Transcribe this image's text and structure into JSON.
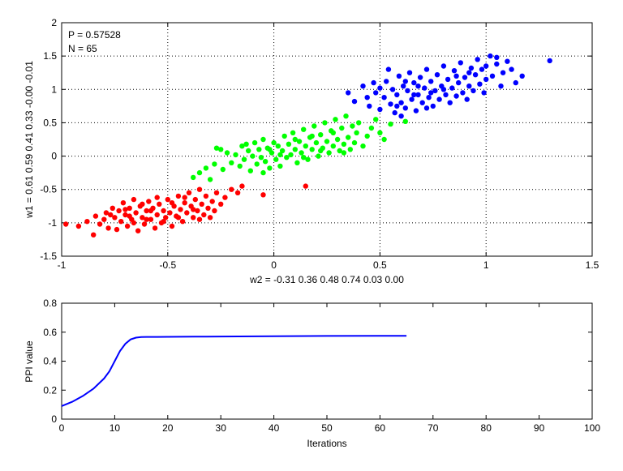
{
  "chart_data": [
    {
      "type": "scatter",
      "xlabel": "w2 = -0.31  0.36  0.48  0.74  0.03  0.00",
      "ylabel": "w1 = 0.61  0.59  0.41  0.33  -0.00  -0.01",
      "xlim": [
        -1,
        1.5
      ],
      "ylim": [
        -1.5,
        2
      ],
      "xticks": [
        "-1",
        "-0.5",
        "0",
        "0.5",
        "1",
        "1.5"
      ],
      "yticks": [
        "-1.5",
        "-1",
        "-0.5",
        "0",
        "0.5",
        "1",
        "1.5",
        "2"
      ],
      "grid": true,
      "annotations": [
        "P = 0.57528",
        "N = 65"
      ],
      "series": [
        {
          "color": "#ff0000",
          "points": [
            [
              -0.98,
              -1.02
            ],
            [
              -0.92,
              -1.05
            ],
            [
              -0.88,
              -0.98
            ],
            [
              -0.85,
              -1.18
            ],
            [
              -0.84,
              -0.9
            ],
            [
              -0.82,
              -1.02
            ],
            [
              -0.8,
              -0.95
            ],
            [
              -0.79,
              -0.85
            ],
            [
              -0.78,
              -1.08
            ],
            [
              -0.76,
              -0.78
            ],
            [
              -0.75,
              -0.92
            ],
            [
              -0.74,
              -1.1
            ],
            [
              -0.73,
              -0.82
            ],
            [
              -0.72,
              -0.98
            ],
            [
              -0.71,
              -0.7
            ],
            [
              -0.7,
              -0.88
            ],
            [
              -0.69,
              -1.05
            ],
            [
              -0.68,
              -0.78
            ],
            [
              -0.67,
              -0.95
            ],
            [
              -0.66,
              -0.65
            ],
            [
              -0.65,
              -0.85
            ],
            [
              -0.64,
              -1.12
            ],
            [
              -0.63,
              -0.75
            ],
            [
              -0.62,
              -0.92
            ],
            [
              -0.61,
              -1.02
            ],
            [
              -0.6,
              -0.82
            ],
            [
              -0.59,
              -0.68
            ],
            [
              -0.58,
              -0.95
            ],
            [
              -0.57,
              -0.78
            ],
            [
              -0.56,
              -1.08
            ],
            [
              -0.55,
              -0.88
            ],
            [
              -0.54,
              -0.72
            ],
            [
              -0.53,
              -1.0
            ],
            [
              -0.52,
              -0.82
            ],
            [
              -0.51,
              -0.92
            ],
            [
              -0.5,
              -0.65
            ],
            [
              -0.49,
              -0.85
            ],
            [
              -0.48,
              -1.05
            ],
            [
              -0.47,
              -0.75
            ],
            [
              -0.46,
              -0.9
            ],
            [
              -0.45,
              -0.6
            ],
            [
              -0.44,
              -0.8
            ],
            [
              -0.43,
              -0.98
            ],
            [
              -0.42,
              -0.7
            ],
            [
              -0.41,
              -0.85
            ],
            [
              -0.4,
              -0.55
            ],
            [
              -0.39,
              -0.75
            ],
            [
              -0.38,
              -0.92
            ],
            [
              -0.37,
              -0.65
            ],
            [
              -0.36,
              -0.82
            ],
            [
              -0.35,
              -0.5
            ],
            [
              -0.34,
              -0.72
            ],
            [
              -0.33,
              -0.88
            ],
            [
              -0.32,
              -0.6
            ],
            [
              -0.31,
              -0.78
            ],
            [
              -0.3,
              -0.92
            ],
            [
              -0.29,
              -0.68
            ],
            [
              -0.28,
              -0.82
            ],
            [
              -0.27,
              -0.55
            ],
            [
              -0.25,
              -0.72
            ],
            [
              -0.23,
              -0.62
            ],
            [
              -0.2,
              -0.5
            ],
            [
              -0.17,
              -0.55
            ],
            [
              -0.15,
              -0.45
            ],
            [
              -0.05,
              -0.58
            ],
            [
              0.15,
              -0.45
            ],
            [
              -0.62,
              -0.72
            ],
            [
              -0.58,
              -0.82
            ],
            [
              -0.55,
              -0.62
            ],
            [
              -0.52,
              -0.98
            ],
            [
              -0.48,
              -0.7
            ],
            [
              -0.45,
              -0.92
            ],
            [
              -0.42,
              -0.62
            ],
            [
              -0.38,
              -0.8
            ],
            [
              -0.35,
              -0.95
            ],
            [
              -0.68,
              -0.9
            ],
            [
              -0.7,
              -0.8
            ],
            [
              -0.77,
              -0.88
            ],
            [
              -0.66,
              -1.0
            ],
            [
              -0.6,
              -0.95
            ]
          ]
        },
        {
          "color": "#00ff00",
          "points": [
            [
              -0.38,
              -0.32
            ],
            [
              -0.35,
              -0.25
            ],
            [
              -0.32,
              -0.18
            ],
            [
              -0.28,
              -0.12
            ],
            [
              -0.27,
              0.12
            ],
            [
              -0.24,
              -0.2
            ],
            [
              -0.22,
              0.05
            ],
            [
              -0.2,
              -0.1
            ],
            [
              -0.18,
              0.02
            ],
            [
              -0.16,
              -0.15
            ],
            [
              -0.15,
              0.15
            ],
            [
              -0.14,
              -0.05
            ],
            [
              -0.12,
              0.08
            ],
            [
              -0.11,
              -0.22
            ],
            [
              -0.1,
              0.0
            ],
            [
              -0.09,
              0.2
            ],
            [
              -0.08,
              -0.12
            ],
            [
              -0.07,
              0.1
            ],
            [
              -0.06,
              -0.02
            ],
            [
              -0.05,
              0.25
            ],
            [
              -0.04,
              -0.08
            ],
            [
              -0.03,
              0.12
            ],
            [
              -0.02,
              -0.18
            ],
            [
              -0.01,
              0.05
            ],
            [
              0.0,
              0.2
            ],
            [
              0.01,
              -0.05
            ],
            [
              0.02,
              0.15
            ],
            [
              0.03,
              -0.15
            ],
            [
              0.04,
              0.08
            ],
            [
              0.05,
              0.3
            ],
            [
              0.06,
              -0.02
            ],
            [
              0.07,
              0.18
            ],
            [
              0.08,
              0.02
            ],
            [
              0.09,
              0.35
            ],
            [
              0.1,
              0.1
            ],
            [
              0.11,
              -0.1
            ],
            [
              0.12,
              0.22
            ],
            [
              0.13,
              0.05
            ],
            [
              0.14,
              0.4
            ],
            [
              0.15,
              0.15
            ],
            [
              0.16,
              -0.05
            ],
            [
              0.17,
              0.28
            ],
            [
              0.18,
              0.1
            ],
            [
              0.19,
              0.45
            ],
            [
              0.2,
              0.2
            ],
            [
              0.21,
              0.0
            ],
            [
              0.22,
              0.32
            ],
            [
              0.23,
              0.12
            ],
            [
              0.24,
              0.5
            ],
            [
              0.25,
              0.22
            ],
            [
              0.26,
              0.05
            ],
            [
              0.27,
              0.38
            ],
            [
              0.28,
              0.15
            ],
            [
              0.29,
              0.55
            ],
            [
              0.3,
              0.25
            ],
            [
              0.31,
              0.08
            ],
            [
              0.32,
              0.42
            ],
            [
              0.33,
              0.18
            ],
            [
              0.34,
              0.6
            ],
            [
              0.35,
              0.28
            ],
            [
              0.36,
              0.1
            ],
            [
              0.37,
              0.45
            ],
            [
              0.38,
              0.2
            ],
            [
              0.39,
              0.35
            ],
            [
              0.4,
              0.5
            ],
            [
              0.42,
              0.15
            ],
            [
              0.44,
              0.3
            ],
            [
              0.46,
              0.42
            ],
            [
              0.48,
              0.55
            ],
            [
              0.5,
              0.35
            ],
            [
              0.52,
              0.25
            ],
            [
              0.55,
              0.48
            ],
            [
              0.62,
              0.52
            ],
            [
              -0.25,
              0.1
            ],
            [
              -0.3,
              -0.35
            ],
            [
              -0.05,
              -0.25
            ],
            [
              0.18,
              0.3
            ],
            [
              0.28,
              0.35
            ],
            [
              0.1,
              0.25
            ],
            [
              -0.13,
              0.18
            ],
            [
              0.03,
              0.02
            ],
            [
              0.22,
              0.08
            ],
            [
              0.33,
              0.05
            ],
            [
              -0.02,
              0.1
            ],
            [
              0.14,
              -0.02
            ]
          ]
        },
        {
          "color": "#0000ff",
          "points": [
            [
              0.38,
              0.82
            ],
            [
              0.42,
              1.05
            ],
            [
              0.45,
              0.75
            ],
            [
              0.48,
              0.95
            ],
            [
              0.5,
              0.7
            ],
            [
              0.52,
              0.88
            ],
            [
              0.53,
              1.12
            ],
            [
              0.55,
              0.78
            ],
            [
              0.56,
              1.0
            ],
            [
              0.57,
              0.65
            ],
            [
              0.58,
              0.92
            ],
            [
              0.59,
              1.2
            ],
            [
              0.6,
              0.8
            ],
            [
              0.61,
              1.05
            ],
            [
              0.62,
              0.72
            ],
            [
              0.63,
              0.98
            ],
            [
              0.64,
              1.25
            ],
            [
              0.65,
              0.85
            ],
            [
              0.66,
              1.1
            ],
            [
              0.67,
              0.68
            ],
            [
              0.68,
              0.92
            ],
            [
              0.69,
              1.18
            ],
            [
              0.7,
              0.8
            ],
            [
              0.71,
              1.02
            ],
            [
              0.72,
              1.3
            ],
            [
              0.73,
              0.88
            ],
            [
              0.74,
              1.12
            ],
            [
              0.75,
              0.75
            ],
            [
              0.76,
              0.98
            ],
            [
              0.77,
              1.22
            ],
            [
              0.78,
              0.85
            ],
            [
              0.79,
              1.05
            ],
            [
              0.8,
              1.35
            ],
            [
              0.81,
              0.92
            ],
            [
              0.82,
              1.15
            ],
            [
              0.83,
              0.8
            ],
            [
              0.84,
              1.02
            ],
            [
              0.85,
              1.28
            ],
            [
              0.86,
              0.9
            ],
            [
              0.87,
              1.1
            ],
            [
              0.88,
              1.4
            ],
            [
              0.89,
              0.95
            ],
            [
              0.9,
              1.18
            ],
            [
              0.91,
              0.85
            ],
            [
              0.92,
              1.05
            ],
            [
              0.93,
              1.32
            ],
            [
              0.94,
              0.98
            ],
            [
              0.95,
              1.22
            ],
            [
              0.96,
              1.45
            ],
            [
              0.97,
              1.08
            ],
            [
              0.98,
              1.3
            ],
            [
              0.99,
              0.95
            ],
            [
              1.0,
              1.15
            ],
            [
              1.02,
              1.5
            ],
            [
              1.03,
              1.2
            ],
            [
              1.05,
              1.38
            ],
            [
              1.07,
              1.05
            ],
            [
              1.08,
              1.25
            ],
            [
              1.1,
              1.42
            ],
            [
              1.12,
              1.3
            ],
            [
              1.14,
              1.1
            ],
            [
              1.17,
              1.2
            ],
            [
              1.3,
              1.43
            ],
            [
              0.44,
              0.88
            ],
            [
              0.47,
              1.1
            ],
            [
              0.5,
              1.02
            ],
            [
              0.58,
              0.75
            ],
            [
              0.62,
              1.12
            ],
            [
              0.68,
              1.05
            ],
            [
              0.74,
              0.95
            ],
            [
              0.8,
              1.0
            ],
            [
              0.86,
              1.2
            ],
            [
              0.92,
              1.25
            ],
            [
              0.66,
              0.92
            ],
            [
              0.72,
              0.72
            ],
            [
              0.35,
              0.95
            ],
            [
              0.54,
              1.3
            ],
            [
              0.6,
              0.6
            ],
            [
              1.0,
              1.35
            ],
            [
              1.05,
              1.48
            ]
          ]
        }
      ]
    },
    {
      "type": "line",
      "xlabel": "Iterations",
      "ylabel": "PPI value",
      "xlim": [
        0,
        100
      ],
      "ylim": [
        0,
        0.8
      ],
      "xticks": [
        "0",
        "10",
        "20",
        "30",
        "40",
        "50",
        "60",
        "70",
        "80",
        "90",
        "100"
      ],
      "yticks": [
        "0",
        "0.2",
        "0.4",
        "0.6",
        "0.8"
      ],
      "grid": false,
      "series": [
        {
          "color": "#0000ff",
          "x": [
            0,
            2,
            4,
            6,
            8,
            9,
            10,
            11,
            12,
            13,
            14,
            15,
            16,
            18,
            20,
            25,
            30,
            40,
            50,
            60,
            65
          ],
          "y": [
            0.09,
            0.12,
            0.16,
            0.21,
            0.28,
            0.33,
            0.4,
            0.47,
            0.52,
            0.55,
            0.562,
            0.566,
            0.567,
            0.567,
            0.568,
            0.569,
            0.57,
            0.572,
            0.574,
            0.575,
            0.575
          ]
        }
      ]
    }
  ]
}
